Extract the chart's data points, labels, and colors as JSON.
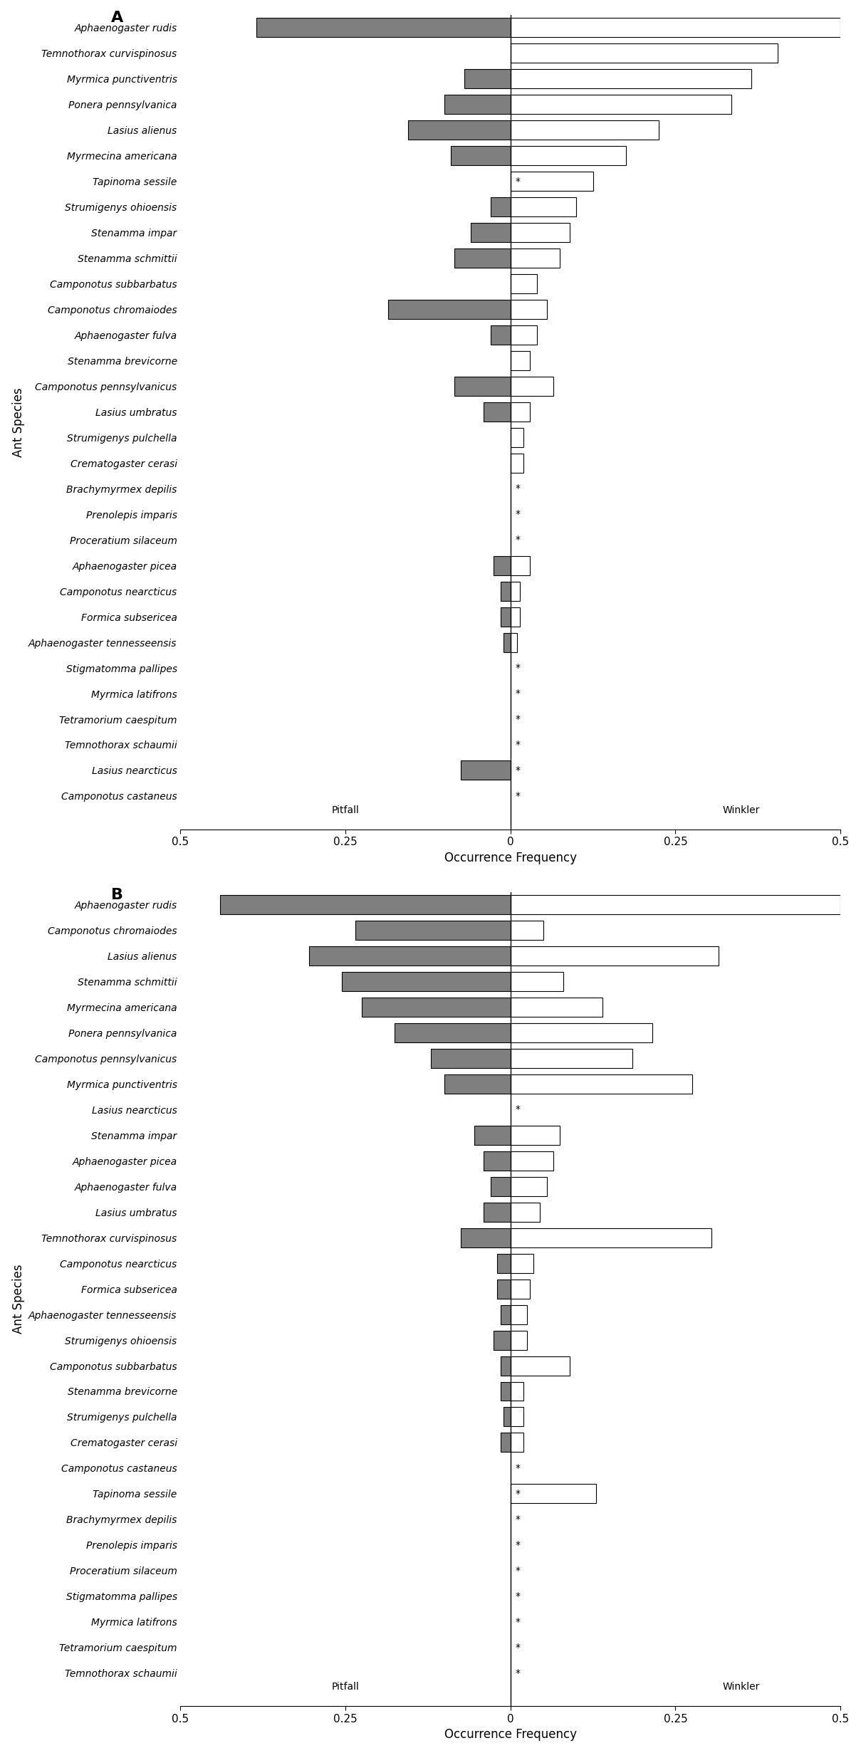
{
  "panel_A": {
    "species": [
      "Aphaenogaster rudis",
      "Temnothorax curvispinosus",
      "Myrmica punctiventris",
      "Ponera pennsylvanica",
      "Lasius alienus",
      "Myrmecina americana",
      "Tapinoma sessile",
      "Strumigenys ohioensis",
      "Stenamma impar",
      "Stenamma schmittii",
      "Camponotus subbarbatus",
      "Camponotus chromaiodes",
      "Aphaenogaster fulva",
      "Stenamma brevicorne",
      "Camponotus pennsylvanicus",
      "Lasius umbratus",
      "Strumigenys pulchella",
      "Crematogaster cerasi",
      "Brachymyrmex depilis",
      "Prenolepis imparis",
      "Proceratium silaceum",
      "Aphaenogaster picea",
      "Camponotus nearcticus",
      "Formica subsericea",
      "Aphaenogaster tennesseensis",
      "Stigmatomma pallipes",
      "Myrmica latifrons",
      "Tetramorium caespitum",
      "Temnothorax schaumii",
      "Lasius nearcticus",
      "Camponotus castaneus"
    ],
    "pitfall": [
      0.385,
      0.0,
      0.07,
      0.1,
      0.155,
      0.09,
      0.0,
      0.03,
      0.06,
      0.085,
      0.0,
      0.185,
      0.03,
      0.0,
      0.085,
      0.04,
      0.0,
      0.0,
      0.0,
      0.0,
      0.0,
      0.025,
      0.015,
      0.015,
      0.01,
      0.0,
      0.0,
      0.0,
      0.0,
      0.075,
      0.0
    ],
    "winkler": [
      0.5,
      0.405,
      0.365,
      0.335,
      0.225,
      0.175,
      0.125,
      0.1,
      0.09,
      0.075,
      0.04,
      0.055,
      0.04,
      0.03,
      0.065,
      0.03,
      0.02,
      0.02,
      0.0,
      0.0,
      0.0,
      0.03,
      0.015,
      0.015,
      0.01,
      0.0,
      0.0,
      0.0,
      0.0,
      0.0,
      0.0
    ],
    "star": [
      false,
      false,
      false,
      false,
      false,
      false,
      true,
      false,
      false,
      false,
      false,
      false,
      false,
      false,
      false,
      false,
      false,
      false,
      true,
      true,
      true,
      false,
      false,
      false,
      false,
      true,
      true,
      true,
      true,
      true,
      true
    ]
  },
  "panel_B": {
    "species": [
      "Aphaenogaster rudis",
      "Camponotus chromaiodes",
      "Lasius alienus",
      "Stenamma schmittii",
      "Myrmecina americana",
      "Ponera pennsylvanica",
      "Camponotus pennsylvanicus",
      "Myrmica punctiventris",
      "Lasius nearcticus",
      "Stenamma impar",
      "Aphaenogaster picea",
      "Aphaenogaster fulva",
      "Lasius umbratus",
      "Temnothorax curvispinosus",
      "Camponotus nearcticus",
      "Formica subsericea",
      "Aphaenogaster tennesseensis",
      "Strumigenys ohioensis",
      "Camponotus subbarbatus",
      "Stenamma brevicorne",
      "Strumigenys pulchella",
      "Crematogaster cerasi",
      "Camponotus castaneus",
      "Tapinoma sessile",
      "Brachymyrmex depilis",
      "Prenolepis imparis",
      "Proceratium silaceum",
      "Stigmatomma pallipes",
      "Myrmica latifrons",
      "Tetramorium caespitum",
      "Temnothorax schaumii"
    ],
    "pitfall": [
      0.44,
      0.235,
      0.305,
      0.255,
      0.225,
      0.175,
      0.12,
      0.1,
      0.0,
      0.055,
      0.04,
      0.03,
      0.04,
      0.075,
      0.02,
      0.02,
      0.015,
      0.025,
      0.015,
      0.015,
      0.01,
      0.015,
      0.0,
      0.0,
      0.0,
      0.0,
      0.0,
      0.0,
      0.0,
      0.0,
      0.0
    ],
    "winkler": [
      0.5,
      0.05,
      0.315,
      0.08,
      0.14,
      0.215,
      0.185,
      0.275,
      0.0,
      0.075,
      0.065,
      0.055,
      0.045,
      0.305,
      0.035,
      0.03,
      0.025,
      0.025,
      0.09,
      0.02,
      0.02,
      0.02,
      0.0,
      0.13,
      0.0,
      0.0,
      0.0,
      0.0,
      0.0,
      0.0,
      0.0
    ],
    "star": [
      false,
      false,
      false,
      false,
      false,
      false,
      false,
      false,
      true,
      false,
      false,
      false,
      false,
      false,
      false,
      false,
      false,
      false,
      false,
      false,
      false,
      false,
      true,
      true,
      true,
      true,
      true,
      true,
      true,
      true,
      true
    ]
  },
  "pitfall_color": "#7f7f7f",
  "winkler_color": "#ffffff",
  "bar_edgecolor": "#000000",
  "xlim": 0.5,
  "xlabel": "Occurrence Frequency",
  "ylabel": "Ant Species",
  "label_A": "A",
  "label_B": "B",
  "pitfall_label": "Pitfall",
  "winkler_label": "Winkler",
  "bar_height": 0.75,
  "species_fontsize": 10,
  "axis_label_fontsize": 12,
  "tick_fontsize": 11,
  "panel_label_fontsize": 16
}
